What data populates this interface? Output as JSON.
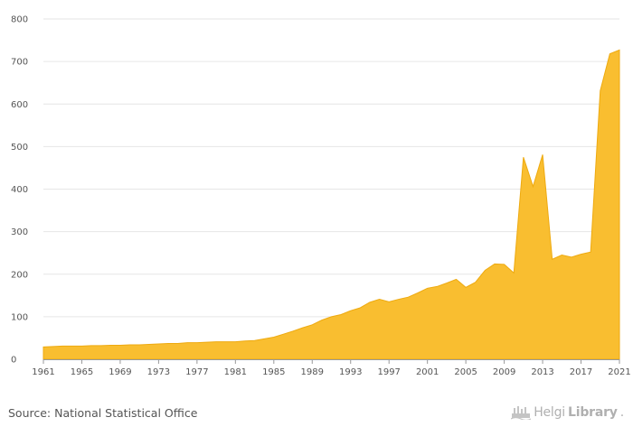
{
  "chart_data": {
    "type": "area",
    "title": "",
    "xlabel": "",
    "ylabel": "",
    "ylim": [
      0,
      800
    ],
    "yticks": [
      0,
      100,
      200,
      300,
      400,
      500,
      600,
      700,
      800
    ],
    "xlim": [
      1961,
      2021
    ],
    "xticks": [
      1961,
      1965,
      1969,
      1973,
      1977,
      1981,
      1985,
      1989,
      1993,
      1997,
      2001,
      2005,
      2009,
      2013,
      2017,
      2021
    ],
    "color": "#F9BE30",
    "stroke": "#EEAA10",
    "grid": true,
    "series": [
      {
        "name": "value",
        "x": [
          1961,
          1962,
          1963,
          1964,
          1965,
          1966,
          1967,
          1968,
          1969,
          1970,
          1971,
          1972,
          1973,
          1974,
          1975,
          1976,
          1977,
          1978,
          1979,
          1980,
          1981,
          1982,
          1983,
          1984,
          1985,
          1986,
          1987,
          1988,
          1989,
          1990,
          1991,
          1992,
          1993,
          1994,
          1995,
          1996,
          1997,
          1998,
          1999,
          2000,
          2001,
          2002,
          2003,
          2004,
          2005,
          2006,
          2007,
          2008,
          2009,
          2010,
          2011,
          2012,
          2013,
          2014,
          2015,
          2016,
          2017,
          2018,
          2019,
          2020,
          2021
        ],
        "values": [
          29,
          30,
          31,
          31,
          31,
          32,
          32,
          33,
          33,
          34,
          34,
          35,
          36,
          37,
          37,
          39,
          39,
          40,
          41,
          41,
          41,
          43,
          44,
          48,
          52,
          59,
          66,
          74,
          81,
          92,
          100,
          105,
          114,
          121,
          134,
          141,
          135,
          141,
          146,
          156,
          167,
          171,
          179,
          188,
          169,
          181,
          209,
          224,
          223,
          203,
          475,
          406,
          481,
          235,
          245,
          240,
          247,
          252,
          631,
          718,
          727
        ]
      }
    ]
  },
  "footer": {
    "source": "Source: National Statistical Office",
    "brand_light": "Helgi",
    "brand_bold": "Library",
    "brand_dot": "."
  },
  "icons": {
    "brand_logo": "helgilibrary-logo-icon"
  }
}
